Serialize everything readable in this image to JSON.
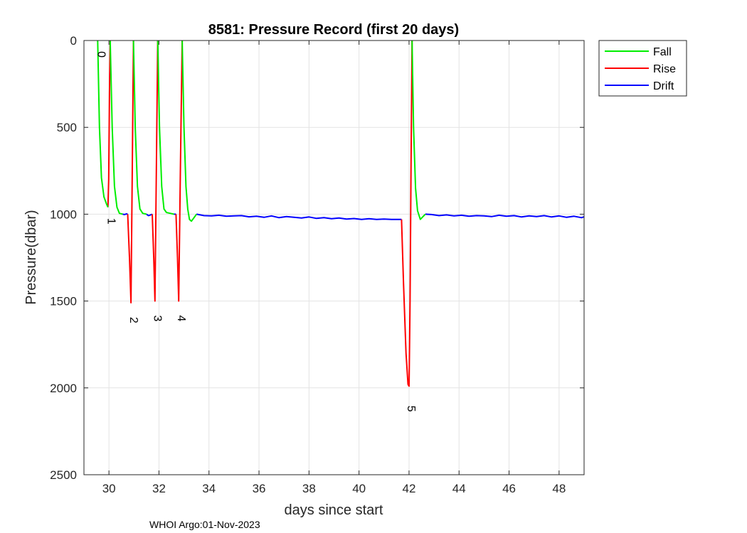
{
  "chart_data": {
    "type": "line",
    "title": "8581: Pressure Record (first 20 days)",
    "xlabel": "days since start",
    "ylabel": "Pressure(dbar)",
    "xlim": [
      29.0,
      49.0
    ],
    "ylim": [
      0,
      2500
    ],
    "y_reversed": true,
    "grid": true,
    "xticks": [
      30,
      32,
      34,
      36,
      38,
      40,
      42,
      44,
      46,
      48
    ],
    "yticks": [
      0,
      500,
      1000,
      1500,
      2000,
      2500
    ],
    "legend": {
      "position": "outside-top-right",
      "entries": [
        "Fall",
        "Rise",
        "Drift"
      ]
    },
    "footer": "WHOI Argo:01-Nov-2023",
    "colors": {
      "Fall": "#00ee00",
      "Rise": "#ff0000",
      "Drift": "#0000ff"
    },
    "series": [
      {
        "name": "Fall",
        "segments": [
          [
            [
              29.55,
              0
            ],
            [
              29.62,
              500
            ],
            [
              29.7,
              790
            ],
            [
              29.8,
              900
            ],
            [
              29.9,
              940
            ],
            [
              29.96,
              960
            ]
          ],
          [
            [
              30.05,
              0
            ],
            [
              30.13,
              500
            ],
            [
              30.22,
              840
            ],
            [
              30.32,
              960
            ],
            [
              30.42,
              995
            ],
            [
              30.55,
              1000
            ]
          ],
          [
            [
              30.98,
              0
            ],
            [
              31.05,
              500
            ],
            [
              31.14,
              840
            ],
            [
              31.24,
              970
            ],
            [
              31.35,
              995
            ],
            [
              31.5,
              1000
            ]
          ],
          [
            [
              31.95,
              0
            ],
            [
              32.02,
              500
            ],
            [
              32.11,
              840
            ],
            [
              32.2,
              970
            ],
            [
              32.3,
              990
            ],
            [
              32.45,
              995
            ],
            [
              32.6,
              1000
            ]
          ],
          [
            [
              32.93,
              0
            ],
            [
              33.0,
              500
            ],
            [
              33.08,
              840
            ],
            [
              33.15,
              970
            ],
            [
              33.22,
              1030
            ],
            [
              33.3,
              1040
            ],
            [
              33.4,
              1020
            ],
            [
              33.5,
              1000
            ]
          ],
          [
            [
              42.12,
              0
            ],
            [
              42.18,
              500
            ],
            [
              42.26,
              850
            ],
            [
              42.34,
              980
            ],
            [
              42.45,
              1030
            ],
            [
              42.55,
              1015
            ],
            [
              42.65,
              1000
            ]
          ]
        ]
      },
      {
        "name": "Rise",
        "segments": [
          [
            [
              29.96,
              960
            ],
            [
              29.99,
              800
            ],
            [
              30.02,
              300
            ],
            [
              30.05,
              0
            ]
          ],
          [
            [
              30.75,
              1000
            ],
            [
              30.82,
              1250
            ],
            [
              30.88,
              1510
            ],
            [
              30.93,
              800
            ],
            [
              30.98,
              0
            ]
          ],
          [
            [
              31.73,
              1000
            ],
            [
              31.79,
              1250
            ],
            [
              31.84,
              1500
            ],
            [
              31.9,
              700
            ],
            [
              31.95,
              0
            ]
          ],
          [
            [
              32.68,
              1000
            ],
            [
              32.74,
              1250
            ],
            [
              32.79,
              1500
            ],
            [
              32.86,
              700
            ],
            [
              32.93,
              0
            ]
          ],
          [
            [
              41.7,
              1030
            ],
            [
              41.78,
              1400
            ],
            [
              41.88,
              1800
            ],
            [
              41.96,
              1980
            ],
            [
              42.0,
              1990
            ],
            [
              42.04,
              1500
            ],
            [
              42.08,
              700
            ],
            [
              42.12,
              0
            ]
          ]
        ]
      },
      {
        "name": "Drift",
        "segments": [
          [
            [
              30.55,
              1000
            ],
            [
              30.62,
              1002
            ],
            [
              30.7,
              998
            ],
            [
              30.75,
              1000
            ]
          ],
          [
            [
              31.5,
              1000
            ],
            [
              31.58,
              1008
            ],
            [
              31.66,
              1004
            ],
            [
              31.73,
              1000
            ]
          ],
          [
            [
              32.6,
              1000
            ],
            [
              32.68,
              1000
            ]
          ],
          [
            [
              33.5,
              1000
            ],
            [
              33.8,
              1008
            ],
            [
              34.1,
              1010
            ],
            [
              34.4,
              1006
            ],
            [
              34.7,
              1012
            ],
            [
              35.0,
              1010
            ],
            [
              35.3,
              1008
            ],
            [
              35.6,
              1015
            ],
            [
              35.9,
              1012
            ],
            [
              36.2,
              1018
            ],
            [
              36.5,
              1010
            ],
            [
              36.8,
              1020
            ],
            [
              37.1,
              1014
            ],
            [
              37.4,
              1018
            ],
            [
              37.7,
              1022
            ],
            [
              38.0,
              1016
            ],
            [
              38.3,
              1024
            ],
            [
              38.6,
              1020
            ],
            [
              38.9,
              1026
            ],
            [
              39.2,
              1022
            ],
            [
              39.5,
              1028
            ],
            [
              39.8,
              1025
            ],
            [
              40.1,
              1030
            ],
            [
              40.4,
              1026
            ],
            [
              40.7,
              1030
            ],
            [
              41.0,
              1028
            ],
            [
              41.3,
              1030
            ],
            [
              41.7,
              1030
            ]
          ],
          [
            [
              42.65,
              1000
            ],
            [
              42.9,
              1002
            ],
            [
              43.2,
              1008
            ],
            [
              43.5,
              1004
            ],
            [
              43.8,
              1010
            ],
            [
              44.1,
              1006
            ],
            [
              44.4,
              1012
            ],
            [
              44.7,
              1008
            ],
            [
              45.0,
              1010
            ],
            [
              45.3,
              1014
            ],
            [
              45.6,
              1006
            ],
            [
              45.9,
              1012
            ],
            [
              46.2,
              1008
            ],
            [
              46.5,
              1016
            ],
            [
              46.8,
              1010
            ],
            [
              47.1,
              1014
            ],
            [
              47.4,
              1008
            ],
            [
              47.7,
              1016
            ],
            [
              48.0,
              1010
            ],
            [
              48.3,
              1018
            ],
            [
              48.6,
              1012
            ],
            [
              48.9,
              1020
            ],
            [
              49.0,
              1015
            ]
          ]
        ]
      }
    ],
    "cycle_labels": [
      {
        "text": "0",
        "x": 29.55,
        "y": 80
      },
      {
        "text": "1",
        "x": 29.95,
        "y": 1040
      },
      {
        "text": "2",
        "x": 30.85,
        "y": 1610
      },
      {
        "text": "3",
        "x": 31.8,
        "y": 1600
      },
      {
        "text": "4",
        "x": 32.75,
        "y": 1600
      },
      {
        "text": "5",
        "x": 41.95,
        "y": 2120
      }
    ]
  }
}
